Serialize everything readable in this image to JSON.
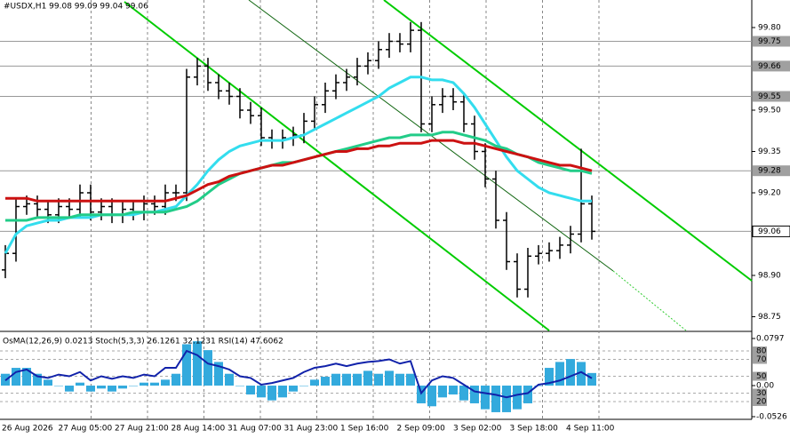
{
  "chart_data": [
    {
      "type": "candlestick",
      "title": "#USDX,H1 99.08 99.09 99.04 99.06",
      "xtick_labels": [
        "26 Aug 2026",
        "27 Aug 05:00",
        "27 Aug 21:00",
        "28 Aug 14:00",
        "31 Aug 07:00",
        "31 Aug 23:00",
        "1 Sep 16:00",
        "2 Sep 09:00",
        "3 Sep 02:00",
        "3 Sep 18:00",
        "4 Sep 11:00"
      ],
      "open": [
        98.92,
        98.98,
        99.15,
        99.16,
        99.14,
        99.12,
        99.15,
        99.14,
        99.2,
        99.13,
        99.15,
        99.12,
        99.14,
        99.13,
        99.16,
        99.15,
        99.2,
        99.2,
        99.62,
        99.66,
        99.6,
        99.57,
        99.55,
        99.5,
        99.48,
        99.4,
        99.39,
        99.4,
        99.41,
        99.46,
        99.52,
        99.57,
        99.6,
        99.62,
        99.66,
        99.68,
        99.72,
        99.75,
        99.74,
        99.79,
        99.45,
        99.52,
        99.55,
        99.53,
        99.45,
        99.35,
        99.25,
        99.1,
        98.95,
        98.85,
        98.97,
        98.98,
        98.99,
        99.01,
        99.05,
        99.16
      ],
      "high": [
        99.01,
        99.18,
        99.19,
        99.19,
        99.17,
        99.18,
        99.18,
        99.23,
        99.23,
        99.18,
        99.18,
        99.17,
        99.17,
        99.19,
        99.19,
        99.23,
        99.23,
        99.65,
        99.69,
        99.69,
        99.63,
        99.6,
        99.58,
        99.53,
        99.51,
        99.43,
        99.43,
        99.44,
        99.49,
        99.55,
        99.6,
        99.63,
        99.65,
        99.69,
        99.71,
        99.75,
        99.78,
        99.78,
        99.82,
        99.82,
        99.55,
        99.58,
        99.58,
        99.56,
        99.48,
        99.38,
        99.28,
        99.13,
        98.98,
        99.0,
        99.01,
        99.02,
        99.04,
        99.08,
        99.36,
        99.19
      ],
      "low": [
        98.89,
        98.95,
        99.12,
        99.11,
        99.09,
        99.09,
        99.11,
        99.11,
        99.1,
        99.1,
        99.09,
        99.09,
        99.1,
        99.1,
        99.12,
        99.12,
        99.17,
        99.17,
        99.59,
        99.57,
        99.54,
        99.52,
        99.47,
        99.45,
        99.37,
        99.36,
        99.36,
        99.37,
        99.38,
        99.43,
        99.49,
        99.54,
        99.57,
        99.59,
        99.63,
        99.65,
        99.69,
        99.71,
        99.71,
        99.42,
        99.42,
        99.49,
        99.5,
        99.42,
        99.32,
        99.22,
        99.07,
        98.92,
        98.82,
        98.82,
        98.94,
        98.95,
        98.96,
        98.98,
        99.02,
        99.03
      ],
      "close": [
        98.98,
        99.15,
        99.16,
        99.14,
        99.12,
        99.15,
        99.14,
        99.2,
        99.13,
        99.15,
        99.12,
        99.14,
        99.13,
        99.16,
        99.15,
        99.2,
        99.2,
        99.62,
        99.66,
        99.6,
        99.57,
        99.55,
        99.5,
        99.48,
        99.4,
        99.39,
        99.4,
        99.41,
        99.46,
        99.52,
        99.57,
        99.6,
        99.62,
        99.66,
        99.68,
        99.72,
        99.75,
        99.74,
        99.79,
        99.45,
        99.52,
        99.55,
        99.53,
        99.45,
        99.35,
        99.25,
        99.1,
        98.95,
        98.85,
        98.97,
        98.98,
        98.99,
        99.01,
        99.05,
        99.16,
        99.06
      ],
      "series": [
        {
          "color": "#33ddee",
          "values": [
            98.98,
            99.05,
            99.08,
            99.09,
            99.1,
            99.1,
            99.11,
            99.11,
            99.11,
            99.12,
            99.12,
            99.12,
            99.12,
            99.13,
            99.13,
            99.14,
            99.15,
            99.19,
            99.23,
            99.28,
            99.32,
            99.35,
            99.37,
            99.38,
            99.39,
            99.39,
            99.39,
            99.4,
            99.41,
            99.43,
            99.45,
            99.47,
            99.49,
            99.51,
            99.53,
            99.55,
            99.58,
            99.6,
            99.62,
            99.62,
            99.61,
            99.61,
            99.6,
            99.56,
            99.51,
            99.45,
            99.39,
            99.33,
            99.28,
            99.25,
            99.22,
            99.2,
            99.19,
            99.18,
            99.17,
            99.17
          ]
        },
        {
          "color": "#22cc88",
          "values": [
            99.1,
            99.1,
            99.1,
            99.11,
            99.11,
            99.11,
            99.11,
            99.12,
            99.12,
            99.12,
            99.12,
            99.12,
            99.13,
            99.13,
            99.13,
            99.13,
            99.14,
            99.15,
            99.17,
            99.2,
            99.23,
            99.25,
            99.27,
            99.28,
            99.29,
            99.3,
            99.31,
            99.31,
            99.32,
            99.33,
            99.34,
            99.35,
            99.36,
            99.37,
            99.38,
            99.39,
            99.4,
            99.4,
            99.41,
            99.41,
            99.41,
            99.42,
            99.42,
            99.41,
            99.4,
            99.39,
            99.37,
            99.36,
            99.34,
            99.33,
            99.31,
            99.3,
            99.29,
            99.28,
            99.28,
            99.27
          ]
        },
        {
          "color": "#cc1111",
          "values": [
            99.18,
            99.18,
            99.18,
            99.17,
            99.17,
            99.17,
            99.17,
            99.17,
            99.17,
            99.17,
            99.17,
            99.17,
            99.17,
            99.17,
            99.17,
            99.17,
            99.18,
            99.19,
            99.21,
            99.23,
            99.24,
            99.26,
            99.27,
            99.28,
            99.29,
            99.3,
            99.3,
            99.31,
            99.32,
            99.33,
            99.34,
            99.35,
            99.35,
            99.36,
            99.36,
            99.37,
            99.37,
            99.38,
            99.38,
            99.38,
            99.39,
            99.39,
            99.39,
            99.38,
            99.38,
            99.37,
            99.36,
            99.35,
            99.34,
            99.33,
            99.32,
            99.31,
            99.3,
            99.3,
            99.29,
            99.28
          ]
        }
      ],
      "ylim": [
        98.7,
        99.9
      ],
      "yticks": [
        {
          "value": 99.8,
          "label": "99.80"
        },
        {
          "value": 99.5,
          "label": "99.50"
        },
        99.35,
        {
          "value": 99.2,
          "label": "99.20"
        },
        {
          "value": 98.9,
          "label": "98.90"
        },
        98.75
      ],
      "levels": [
        99.75,
        99.66,
        99.55,
        99.28,
        99.06
      ],
      "current": 99.06
    },
    {
      "type": "oscillator",
      "title": "OsMA(12,26,9) 0.0213 Stoch(5,3,3) 26.1261 32.1231 RSI(14) 47.6062",
      "series": [
        {
          "name": "OsMA",
          "color": "#33aadd",
          "axis": "y",
          "values": [
            0.02,
            0.03,
            0.03,
            0.02,
            0.01,
            0,
            -0.01,
            0.005,
            -0.01,
            -0.005,
            -0.01,
            -0.005,
            0,
            0.005,
            0.005,
            0.01,
            0.02,
            0.07,
            0.075,
            0.06,
            0.04,
            0.02,
            0,
            -0.015,
            -0.02,
            -0.025,
            -0.02,
            -0.01,
            0,
            0.01,
            0.015,
            0.02,
            0.02,
            0.02,
            0.025,
            0.02,
            0.025,
            0.02,
            0.02,
            -0.03,
            -0.035,
            -0.02,
            -0.015,
            -0.025,
            -0.03,
            -0.04,
            -0.045,
            -0.045,
            -0.04,
            -0.03,
            0,
            0.03,
            0.04,
            0.045,
            0.04,
            0.0213
          ]
        },
        {
          "name": "RSI",
          "color": "#1122aa",
          "axis": "y2",
          "values": [
            45,
            55,
            58,
            50,
            48,
            52,
            50,
            55,
            45,
            50,
            47,
            50,
            48,
            52,
            50,
            60,
            60,
            80,
            75,
            65,
            62,
            58,
            50,
            48,
            40,
            42,
            45,
            48,
            55,
            60,
            62,
            65,
            62,
            65,
            67,
            68,
            70,
            65,
            68,
            30,
            45,
            50,
            48,
            40,
            32,
            30,
            28,
            25,
            28,
            30,
            40,
            42,
            45,
            50,
            55,
            47.6062
          ]
        }
      ],
      "ylim": [
        -0.0526,
        0.0797
      ],
      "yticks": [
        0.0797,
        {
          "value": 0,
          "label": "0.00"
        },
        -0.0526
      ],
      "y2lim": [
        0,
        100
      ],
      "y2ticks": [
        80,
        70,
        50,
        30,
        20
      ]
    }
  ]
}
